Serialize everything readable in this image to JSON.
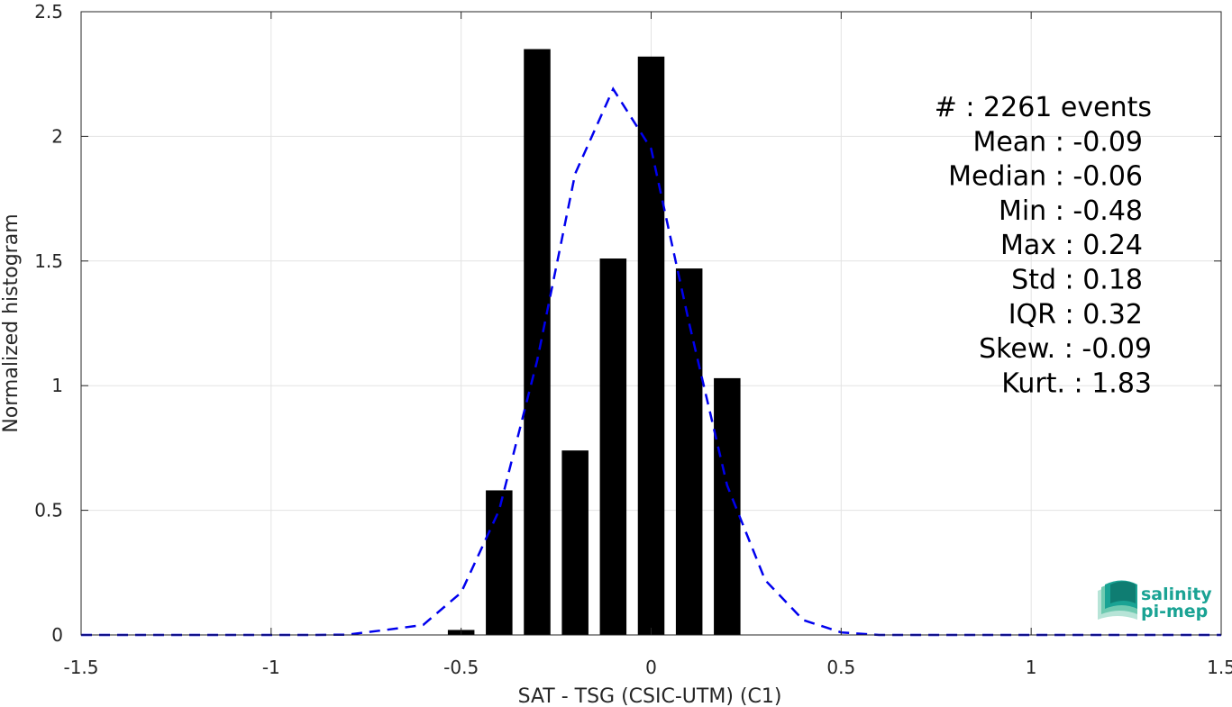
{
  "chart_data": {
    "type": "bar",
    "xlabel": "SAT - TSG (CSIC-UTM) (C1)",
    "ylabel": "Normalized histogram",
    "xlim": [
      -1.5,
      1.5
    ],
    "ylim": [
      0,
      2.5
    ],
    "xticks": [
      -1.5,
      -1,
      -0.5,
      0,
      0.5,
      1,
      1.5
    ],
    "xtick_labels": [
      "-1.5",
      "-1",
      "-0.5",
      "0",
      "0.5",
      "1",
      "1.5"
    ],
    "yticks": [
      0,
      0.5,
      1,
      1.5,
      2,
      2.5
    ],
    "ytick_labels": [
      "0",
      "0.5",
      "1",
      "1.5",
      "2",
      "2.5"
    ],
    "grid": true,
    "bar_color": "#000000",
    "bar_width": 0.07,
    "bars": {
      "x": [
        -0.5,
        -0.4,
        -0.3,
        -0.2,
        -0.1,
        0.0,
        0.1,
        0.2
      ],
      "values": [
        0.02,
        0.58,
        2.35,
        0.74,
        1.51,
        2.32,
        1.47,
        1.03
      ]
    },
    "fit_curve": {
      "color": "#0000ee",
      "style": "dashed",
      "x": [
        -1.5,
        -1.4,
        -1.3,
        -1.2,
        -1.1,
        -1.0,
        -0.9,
        -0.8,
        -0.7,
        -0.6,
        -0.5,
        -0.4,
        -0.3,
        -0.2,
        -0.1,
        0.0,
        0.1,
        0.2,
        0.3,
        0.4,
        0.5,
        0.6,
        0.7,
        0.8,
        0.9,
        1.0,
        1.1,
        1.2,
        1.3,
        1.4,
        1.5
      ],
      "values": [
        0,
        0,
        0,
        0,
        0,
        0,
        0,
        0.001,
        0.02,
        0.04,
        0.17,
        0.5,
        1.1,
        1.85,
        2.19,
        1.95,
        1.25,
        0.6,
        0.22,
        0.06,
        0.01,
        0,
        0,
        0,
        0,
        0,
        0,
        0,
        0,
        0,
        0
      ]
    },
    "stats": [
      "#  : 2261 events",
      "Mean : -0.09",
      "Median : -0.06",
      "Min : -0.48",
      "Max : 0.24",
      "Std : 0.18",
      "IQR : 0.32",
      "Skew. : -0.09",
      "Kurt. : 1.83"
    ]
  },
  "logo": {
    "line1": "salinity",
    "line2": "pi-mep",
    "color": "#1aa394"
  }
}
